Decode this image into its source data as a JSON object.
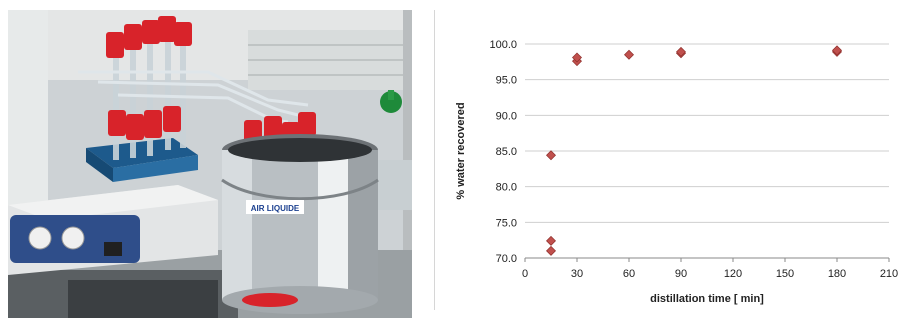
{
  "photo": {
    "icon": "lab-distillation-photo",
    "label_text": "AIR LIQUIDE"
  },
  "chart_data": {
    "type": "scatter",
    "title": "",
    "xlabel": "distillation time [ min]",
    "ylabel": "% water recovered",
    "xlim": [
      0,
      210
    ],
    "ylim": [
      70.0,
      100.0
    ],
    "x_ticks": [
      "0",
      "30",
      "60",
      "90",
      "120",
      "150",
      "180",
      "210"
    ],
    "y_ticks": [
      "70.0",
      "75.0",
      "80.0",
      "85.0",
      "90.0",
      "95.0",
      "100.0"
    ],
    "grid": "horizontal",
    "legend": "none",
    "marker_color": "#c0504d",
    "points": [
      {
        "x": 15,
        "y": 71.0
      },
      {
        "x": 15,
        "y": 72.4
      },
      {
        "x": 15,
        "y": 84.4
      },
      {
        "x": 30,
        "y": 97.6
      },
      {
        "x": 30,
        "y": 98.1
      },
      {
        "x": 60,
        "y": 98.5
      },
      {
        "x": 90,
        "y": 98.7
      },
      {
        "x": 90,
        "y": 98.9
      },
      {
        "x": 180,
        "y": 98.9
      },
      {
        "x": 180,
        "y": 99.1
      }
    ]
  }
}
